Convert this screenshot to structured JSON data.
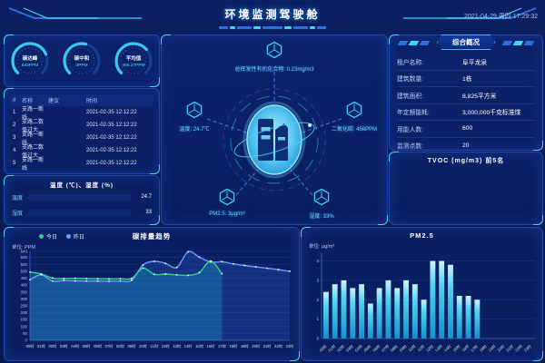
{
  "header": {
    "title": "环境监测驾驶舱",
    "datetime": "2021-04-29 周四 17:29:32"
  },
  "colors": {
    "bg": "#0A1D57",
    "panel_border": "#1C47AE",
    "accent_cyan": "#3FD6F6",
    "accent_green": "#2BD889",
    "accent_blue": "#6E9BFF",
    "text_dim": "#AFC9F5"
  },
  "gauges": {
    "items": [
      {
        "label": "碳达峰",
        "value": "643PPM",
        "pct": 0.75
      },
      {
        "label": "碳中和",
        "value": "0PPM",
        "pct": 0.55
      },
      {
        "label": "平均值",
        "value": "456.27PPM",
        "pct": 0.68
      }
    ]
  },
  "alerts": {
    "columns": [
      "#",
      "名称",
      "建议",
      "时间"
    ],
    "rows": [
      {
        "no": "1",
        "name": "支路一断线",
        "advice": "",
        "time": "2021-02-35 12:12:22"
      },
      {
        "no": "2",
        "name": "支路二数值过大",
        "advice": "",
        "time": "2021-02-35 12:12:22"
      },
      {
        "no": "3",
        "name": "支路一断线",
        "advice": "",
        "time": "2021-02-35 12:12:22"
      },
      {
        "no": "4",
        "name": "支路二数值过大",
        "advice": "",
        "time": "2021-02-35 12:12:22"
      },
      {
        "no": "5",
        "name": "支路一断线",
        "advice": "",
        "time": "2021-02-35 12:12:22"
      }
    ]
  },
  "env_bars": {
    "title": "温度 (℃)、湿度 (%)",
    "items": [
      {
        "label": "温度",
        "value": "24.7",
        "pct": 62
      },
      {
        "label": "湿度",
        "value": "33",
        "pct": 86
      }
    ]
  },
  "center": {
    "nodes": {
      "top": "总挥发性有机化合物: 0.23mg/m3",
      "left": "温度: 24.7℃",
      "right": "二氧化碳: 456PPM",
      "bottom_left": "PM2.5: 3μg/m³",
      "bottom_right": "湿度: 33%"
    }
  },
  "overview": {
    "title": "综合概况",
    "rows": [
      {
        "label": "租户名称:",
        "value": "阜平龙泉"
      },
      {
        "label": "建筑数量:",
        "value": "1栋"
      },
      {
        "label": "建筑面积:",
        "value": "8,825平方米"
      },
      {
        "label": "年定额能耗:",
        "value": "3,000,000千克标准煤"
      },
      {
        "label": "用能人数:",
        "value": "600"
      },
      {
        "label": "监测点数:",
        "value": "20"
      }
    ]
  },
  "tvoc_panel": {
    "title": "TVOC (mg/m3) 前5名"
  },
  "chart_data": [
    {
      "type": "line",
      "title": "碳排量趋势",
      "unit_label": "单位: PPM",
      "legend": [
        "今日",
        "昨日"
      ],
      "legend_position": "top-left",
      "grid": true,
      "x": [
        "00时",
        "01时",
        "02时",
        "03时",
        "04时",
        "05时",
        "06时",
        "07时",
        "08时",
        "09时",
        "10时",
        "11时",
        "12时",
        "13时",
        "14时",
        "15时",
        "16时",
        "17时",
        "18时",
        "19时",
        "20时",
        "21时",
        "22时",
        "23时"
      ],
      "yticks": [
        0,
        50,
        100,
        150,
        200,
        250,
        300,
        350,
        400,
        450,
        500,
        550,
        600,
        643
      ],
      "ylim": [
        0,
        643
      ],
      "xlabel": "",
      "ylabel": "PPM",
      "series": [
        {
          "name": "今日",
          "color": "#2BD889",
          "values": [
            493,
            480,
            450,
            446,
            448,
            446,
            445,
            444,
            445,
            448,
            522,
            477,
            479,
            473,
            470,
            490,
            573,
            481
          ]
        },
        {
          "name": "昨日",
          "color": "#6E9BFF",
          "values": [
            438,
            474,
            428,
            432,
            429,
            428,
            428,
            427,
            428,
            434,
            544,
            571,
            556,
            527,
            640,
            601,
            566,
            568,
            553,
            541,
            531,
            521,
            511,
            499
          ]
        }
      ]
    },
    {
      "type": "bar",
      "title": "PM2.5",
      "unit_label": "单位: μg/m³",
      "grid": true,
      "x": [
        "00时",
        "01时",
        "02时",
        "03时",
        "04时",
        "05时",
        "06时",
        "07时",
        "08时",
        "09时",
        "10时",
        "11时",
        "12时",
        "13时",
        "14时",
        "15时",
        "16时",
        "17时",
        "18时",
        "19时",
        "20时",
        "21时",
        "22时",
        "23时"
      ],
      "yticks": [
        0,
        1,
        2,
        3,
        4
      ],
      "ylim": [
        0,
        4.4
      ],
      "xlabel": "",
      "ylabel": "μg/m³",
      "values": [
        2.4,
        2.8,
        3.0,
        2.6,
        2.8,
        1.8,
        2.6,
        3.0,
        2.6,
        3.0,
        2.8,
        2.0,
        4.0,
        4.0,
        3.8,
        2.2,
        2.2,
        2.0
      ]
    }
  ]
}
